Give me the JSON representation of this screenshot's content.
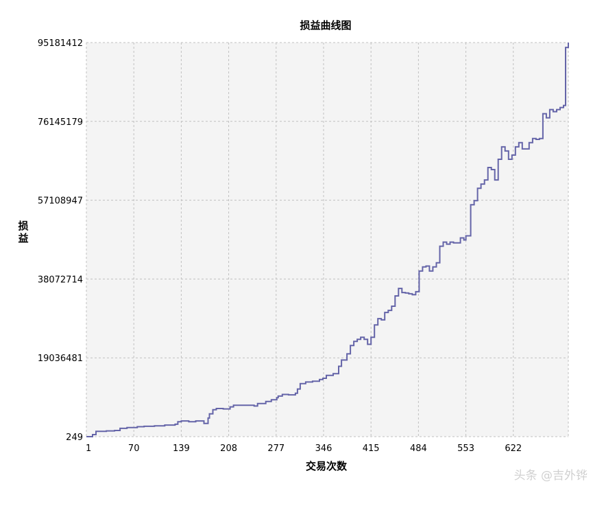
{
  "chart_data": {
    "type": "line",
    "title": "损益曲线图",
    "xlabel": "交易次数",
    "ylabel": "损益",
    "xlim": [
      1,
      702
    ],
    "ylim": [
      249,
      95181412
    ],
    "x_ticks": [
      "1",
      "70",
      "139",
      "208",
      "277",
      "346",
      "415",
      "484",
      "553",
      "622"
    ],
    "y_ticks": [
      "249",
      "19036481",
      "38072714",
      "57108947",
      "76145179",
      "95181412"
    ],
    "grid": true,
    "colors": {
      "line": "#6464a8",
      "plot_bg": "#f4f4f4",
      "grid": "#c0c0c0"
    },
    "series": [
      {
        "x": [
          1,
          10,
          15,
          30,
          42,
          50,
          60,
          75,
          85,
          100,
          115,
          130,
          134,
          139,
          150,
          160,
          172,
          178,
          180,
          185,
          190,
          200,
          210,
          215,
          230,
          245,
          250,
          262,
          270,
          278,
          280,
          286,
          295,
          305,
          308,
          312,
          320,
          330,
          340,
          345,
          350,
          360,
          368,
          372,
          375,
          380,
          385,
          390,
          395,
          400,
          405,
          410,
          415,
          420,
          425,
          430,
          435,
          440,
          445,
          450,
          455,
          460,
          465,
          470,
          475,
          480,
          485,
          490,
          495,
          500,
          505,
          510,
          515,
          520,
          525,
          530,
          535,
          540,
          545,
          550,
          553,
          560,
          565,
          570,
          575,
          580,
          585,
          590,
          595,
          600,
          605,
          610,
          615,
          620,
          625,
          630,
          635,
          640,
          645,
          650,
          655,
          660,
          665,
          670,
          675,
          680,
          685,
          690,
          695,
          698,
          702
        ],
        "values": [
          249,
          500000,
          1300000,
          1400000,
          1500000,
          2000000,
          2200000,
          2400000,
          2500000,
          2600000,
          2800000,
          3000000,
          3600000,
          3800000,
          3600000,
          3800000,
          3200000,
          4500000,
          5500000,
          6500000,
          6800000,
          6700000,
          7200000,
          7600000,
          7600000,
          7400000,
          8000000,
          8500000,
          8900000,
          9400000,
          9800000,
          10200000,
          10100000,
          10500000,
          11500000,
          12800000,
          13200000,
          13400000,
          13800000,
          14100000,
          14800000,
          15200000,
          17000000,
          18500000,
          18500000,
          20000000,
          22000000,
          23000000,
          23500000,
          24000000,
          23500000,
          22300000,
          24000000,
          27000000,
          28500000,
          28200000,
          30000000,
          30500000,
          31500000,
          34000000,
          35800000,
          34800000,
          34700000,
          34500000,
          34300000,
          35000000,
          40000000,
          41000000,
          41200000,
          40000000,
          41000000,
          42000000,
          46000000,
          47000000,
          46500000,
          47000000,
          46800000,
          46800000,
          48000000,
          47500000,
          48500000,
          56000000,
          57000000,
          60000000,
          61000000,
          62000000,
          65000000,
          64500000,
          62000000,
          67000000,
          70000000,
          69000000,
          67000000,
          68000000,
          70000000,
          71000000,
          69500000,
          69500000,
          71000000,
          72000000,
          71800000,
          72000000,
          78000000,
          77000000,
          79000000,
          78500000,
          79000000,
          79500000,
          80000000,
          94000000,
          95181412
        ]
      }
    ]
  },
  "watermark": "头条 @吉外铧"
}
